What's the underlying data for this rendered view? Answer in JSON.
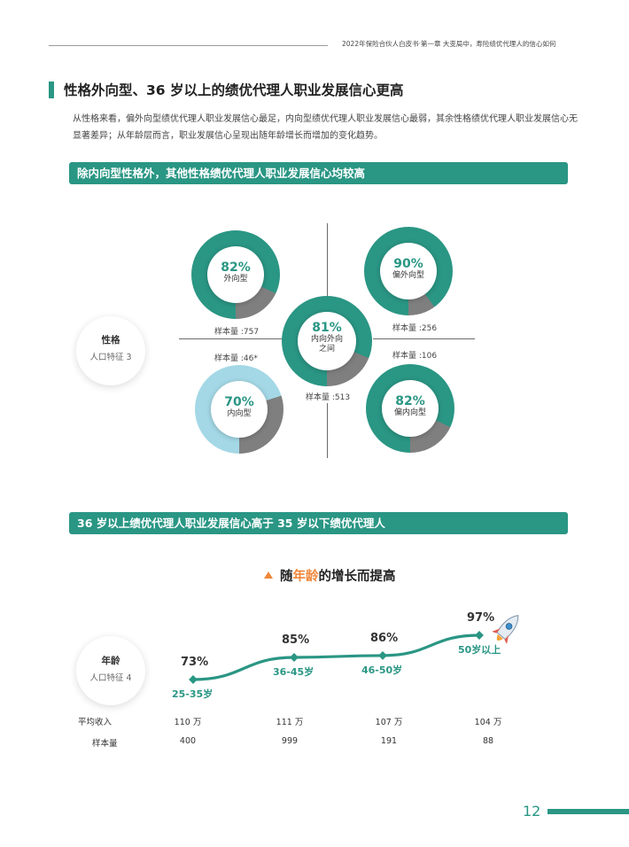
{
  "header": {
    "running_title": "2022年保险合伙人白皮书·第一章 大变局中，寿险绩优代理人的信心如何"
  },
  "section": {
    "title": "性格外向型、36 岁以上的绩优代理人职业发展信心更高",
    "intro": "从性格来看，偏外向型绩优代理人职业发展信心最足，内向型绩优代理人职业发展信心最弱，其余性格绩优代理人职业发展信心无显著差异；从年龄层而言，职业发展信心呈现出随年龄增长而增加的变化趋势。"
  },
  "personality": {
    "banner": "除内向型性格外，其他性格绩优代理人职业发展信心均较高",
    "pill": {
      "title": "性格",
      "subtitle": "人口特征 3"
    },
    "items": [
      {
        "pct": "82%",
        "label": "外向型",
        "sample": "样本量 :757",
        "value": 0.82,
        "color": "#2a9684"
      },
      {
        "pct": "90%",
        "label": "偏外向型",
        "sample": "样本量 :256",
        "value": 0.9,
        "color": "#2a9684"
      },
      {
        "pct": "81%",
        "label": "内向外向",
        "label2": "之间",
        "sample": "样本量 :513",
        "value": 0.81,
        "color": "#2a9684"
      },
      {
        "pct": "70%",
        "label": "内向型",
        "sample": "样本量 :46*",
        "value": 0.7,
        "color": "#a4d8e6"
      },
      {
        "pct": "82%",
        "label": "偏内向型",
        "sample": "样本量 :106",
        "value": 0.82,
        "color": "#2a9684"
      }
    ]
  },
  "age": {
    "banner": "36 岁以上绩优代理人职业发展信心高于 35 岁以下绩优代理人",
    "headline_pre": "随",
    "headline_hl": "年龄",
    "headline_post": "的增长而提高",
    "pill": {
      "title": "年龄",
      "subtitle": "人口特征 4"
    },
    "line_color": "#2a9684",
    "groups": [
      {
        "pct": "73%",
        "value": 73,
        "age": "25-35岁",
        "income": "110 万",
        "sample": "400"
      },
      {
        "pct": "85%",
        "value": 85,
        "age": "36-45岁",
        "income": "111 万",
        "sample": "999"
      },
      {
        "pct": "86%",
        "value": 86,
        "age": "46-50岁",
        "income": "107 万",
        "sample": "191"
      },
      {
        "pct": "97%",
        "value": 97,
        "age": "50岁以上",
        "income": "104 万",
        "sample": "88"
      }
    ],
    "row_labels": {
      "income": "平均收入",
      "sample": "样本量"
    }
  },
  "footer": {
    "page_number": "12"
  }
}
